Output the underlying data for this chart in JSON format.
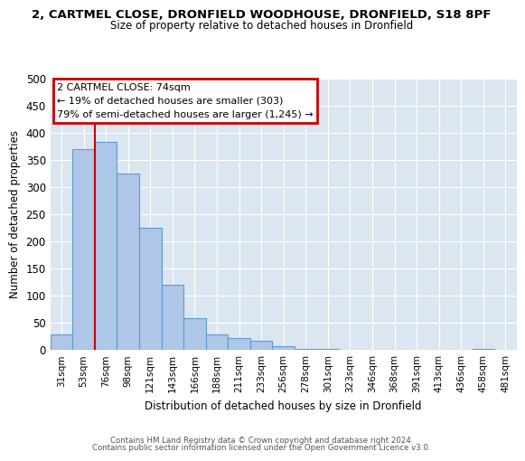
{
  "title_main": "2, CARTMEL CLOSE, DRONFIELD WOODHOUSE, DRONFIELD, S18 8PF",
  "title_sub": "Size of property relative to detached houses in Dronfield",
  "xlabel": "Distribution of detached houses by size in Dronfield",
  "ylabel": "Number of detached properties",
  "bar_labels": [
    "31sqm",
    "53sqm",
    "76sqm",
    "98sqm",
    "121sqm",
    "143sqm",
    "166sqm",
    "188sqm",
    "211sqm",
    "233sqm",
    "256sqm",
    "278sqm",
    "301sqm",
    "323sqm",
    "346sqm",
    "368sqm",
    "391sqm",
    "413sqm",
    "436sqm",
    "458sqm",
    "481sqm"
  ],
  "bar_values": [
    28,
    370,
    383,
    325,
    225,
    120,
    58,
    28,
    22,
    16,
    6,
    2,
    1,
    0,
    0,
    0,
    0,
    0,
    0,
    1,
    0
  ],
  "bar_color": "#aec6e8",
  "bar_edge_color": "#5b9bd5",
  "background_color": "#dce6f1",
  "vline_color": "#cc0000",
  "vline_xindex": 2,
  "ylim": [
    0,
    500
  ],
  "yticks": [
    0,
    50,
    100,
    150,
    200,
    250,
    300,
    350,
    400,
    450,
    500
  ],
  "annotation_title": "2 CARTMEL CLOSE: 74sqm",
  "annotation_line1": "← 19% of detached houses are smaller (303)",
  "annotation_line2": "79% of semi-detached houses are larger (1,245) →",
  "annotation_box_color": "#cc0000",
  "footnote1": "Contains HM Land Registry data © Crown copyright and database right 2024.",
  "footnote2": "Contains public sector information licensed under the Open Government Licence v3.0."
}
